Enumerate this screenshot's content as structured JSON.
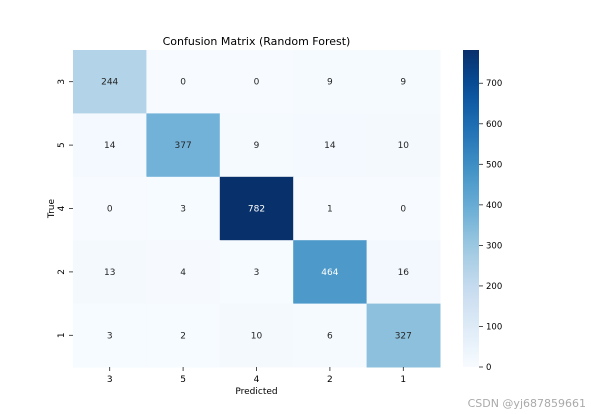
{
  "chart_data": {
    "type": "heatmap",
    "title": "Confusion Matrix (Random Forest)",
    "xlabel": "Predicted",
    "ylabel": "True",
    "x_labels": [
      "3",
      "5",
      "4",
      "2",
      "1"
    ],
    "y_labels": [
      "3",
      "5",
      "4",
      "2",
      "1"
    ],
    "values": [
      [
        244,
        0,
        0,
        9,
        9
      ],
      [
        14,
        377,
        9,
        14,
        10
      ],
      [
        0,
        3,
        782,
        1,
        0
      ],
      [
        13,
        4,
        3,
        464,
        16
      ],
      [
        3,
        2,
        10,
        6,
        327
      ]
    ],
    "colorbar": {
      "min": 0,
      "max": 782,
      "ticks": [
        0,
        100,
        200,
        300,
        400,
        500,
        600,
        700
      ]
    },
    "colormap": "Blues"
  },
  "watermark": "CSDN @yj687859661"
}
